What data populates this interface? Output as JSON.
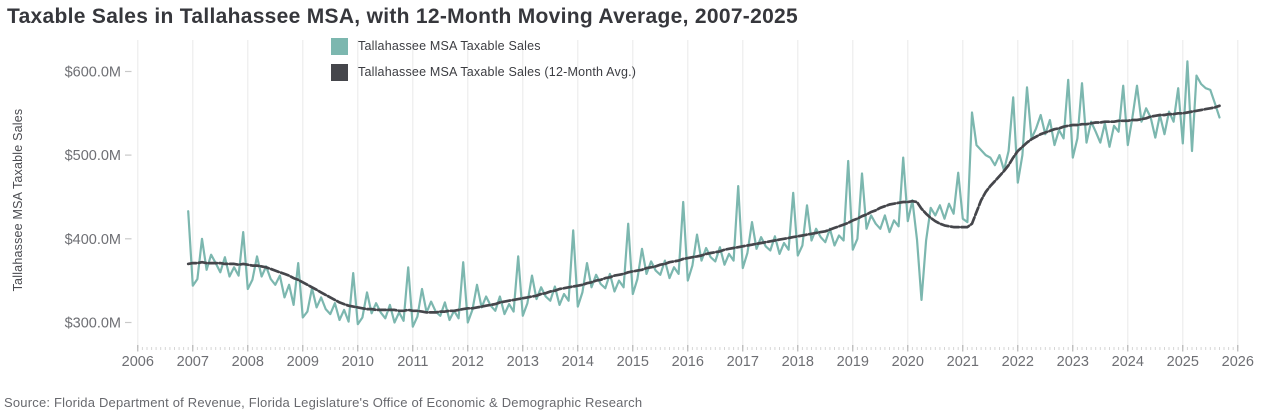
{
  "title": "Taxable Sales in Tallahassee MSA, with 12-Month Moving Average, 2007-2025",
  "source": "Source: Florida Department of Revenue, Florida Legislature's Office of Economic & Demographic Research",
  "legend": {
    "items": [
      {
        "label": "Tallahassee MSA Taxable Sales",
        "color": "#7cb7af"
      },
      {
        "label": "Tallahassee MSA Taxable Sales (12-Month Avg.)",
        "color": "#45464b"
      }
    ]
  },
  "y_axis": {
    "title": "Tallahassee MSA Taxable Sales",
    "tick_labels": [
      "$600.0M",
      "$500.0M",
      "$400.0M",
      "$300.0M"
    ],
    "tick_values": [
      600,
      500,
      400,
      300
    ]
  },
  "x_axis": {
    "tick_years": [
      2006,
      2007,
      2008,
      2009,
      2010,
      2011,
      2012,
      2013,
      2014,
      2015,
      2016,
      2017,
      2018,
      2019,
      2020,
      2021,
      2022,
      2023,
      2024,
      2025,
      2026
    ]
  },
  "colors": {
    "grid": "#e9e9e9",
    "minor_tick": "#d6d6d6",
    "major_tick": "#a8a8a8",
    "y_tick": "#c9c9c9",
    "tick_label": "#6e6f74"
  },
  "chart_data": {
    "type": "line",
    "title": "Taxable Sales in Tallahassee MSA, with 12-Month Moving Average, 2007-2025",
    "ylabel": "Tallahassee MSA Taxable Sales",
    "x_unit": "month",
    "x_start_year": 2006,
    "x_start_month": 12,
    "x_end_label": "2025-09",
    "xlim": [
      2006,
      2026
    ],
    "ylim": [
      269.5,
      637.6
    ],
    "grid": "vertical-only",
    "legend_position": "top-center",
    "y_value_unit": "millions USD",
    "series": [
      {
        "name": "Tallahassee MSA Taxable Sales",
        "color": "#7cb7af",
        "dash": false,
        "values": [
          433,
          344,
          352,
          400,
          363,
          381,
          371,
          360,
          378,
          355,
          366,
          356,
          408,
          340,
          351,
          379,
          355,
          367,
          352,
          345,
          356,
          330,
          345,
          321,
          371,
          306,
          313,
          341,
          318,
          330,
          316,
          310,
          323,
          303,
          315,
          301,
          359,
          298,
          306,
          336,
          311,
          323,
          312,
          305,
          321,
          300,
          312,
          302,
          366,
          295,
          307,
          340,
          312,
          325,
          313,
          308,
          324,
          303,
          314,
          305,
          372,
          300,
          315,
          345,
          318,
          331,
          320,
          314,
          331,
          310,
          322,
          313,
          379,
          308,
          323,
          356,
          328,
          342,
          331,
          326,
          343,
          321,
          334,
          326,
          410,
          319,
          336,
          371,
          342,
          357,
          346,
          341,
          358,
          337,
          350,
          342,
          418,
          334,
          352,
          388,
          358,
          373,
          362,
          357,
          374,
          353,
          366,
          358,
          444,
          350,
          368,
          405,
          374,
          389,
          378,
          373,
          390,
          369,
          382,
          374,
          463,
          365,
          383,
          420,
          388,
          402,
          391,
          386,
          403,
          382,
          395,
          387,
          455,
          380,
          392,
          440,
          398,
          412,
          402,
          396,
          412,
          392,
          404,
          398,
          493,
          387,
          400,
          478,
          412,
          428,
          418,
          412,
          428,
          408,
          422,
          415,
          497,
          421,
          446,
          399,
          327,
          398,
          437,
          428,
          440,
          424,
          442,
          430,
          479,
          424,
          420,
          551,
          512,
          506,
          500,
          497,
          488,
          500,
          482,
          505,
          569,
          467,
          500,
          581,
          520,
          532,
          548,
          525,
          542,
          512,
          530,
          520,
          590,
          497,
          520,
          586,
          515,
          540,
          528,
          515,
          538,
          510,
          535,
          528,
          583,
          512,
          545,
          583,
          540,
          556,
          545,
          521,
          548,
          525,
          552,
          540,
          580,
          514,
          612,
          505,
          595,
          585,
          580,
          578,
          562,
          545
        ]
      },
      {
        "name": "Tallahassee MSA Taxable Sales (12-Month Avg.)",
        "color": "#45464b",
        "dash": true,
        "values": [
          370,
          371,
          371,
          372,
          371,
          371,
          371,
          371,
          370,
          370,
          370,
          369,
          370,
          369,
          368,
          368,
          367,
          366,
          364,
          362,
          360,
          358,
          356,
          353,
          351,
          348,
          345,
          342,
          339,
          336,
          333,
          330,
          327,
          324,
          322,
          320,
          319,
          318,
          317,
          316,
          316,
          315,
          315,
          315,
          315,
          315,
          314,
          314,
          315,
          314,
          314,
          313,
          312,
          312,
          312,
          313,
          313,
          314,
          314,
          315,
          316,
          317,
          317,
          318,
          319,
          320,
          321,
          322,
          324,
          325,
          326,
          327,
          328,
          329,
          330,
          331,
          332,
          334,
          335,
          337,
          338,
          340,
          341,
          342,
          343,
          344,
          345,
          347,
          348,
          350,
          351,
          353,
          354,
          356,
          357,
          358,
          360,
          361,
          362,
          363,
          365,
          366,
          367,
          369,
          370,
          372,
          373,
          374,
          376,
          377,
          378,
          379,
          380,
          382,
          383,
          384,
          385,
          387,
          388,
          389,
          390,
          391,
          392,
          393,
          394,
          395,
          396,
          397,
          398,
          399,
          400,
          401,
          402,
          403,
          404,
          405,
          406,
          407,
          408,
          409,
          411,
          413,
          415,
          417,
          419,
          422,
          424,
          427,
          429,
          432,
          434,
          437,
          439,
          441,
          442,
          443,
          444,
          444,
          445,
          444,
          436,
          430,
          425,
          421,
          418,
          416,
          415,
          414,
          414,
          414,
          414,
          418,
          432,
          446,
          456,
          463,
          469,
          475,
          481,
          488,
          497,
          505,
          510,
          515,
          519,
          522,
          525,
          527,
          529,
          531,
          532,
          534,
          535,
          536,
          536,
          537,
          537,
          538,
          539,
          539,
          540,
          540,
          540,
          541,
          541,
          541,
          542,
          542,
          543,
          544,
          546,
          547,
          548,
          548,
          549,
          549,
          550,
          550,
          551,
          552,
          553,
          554,
          555,
          556,
          557,
          559
        ]
      }
    ]
  }
}
